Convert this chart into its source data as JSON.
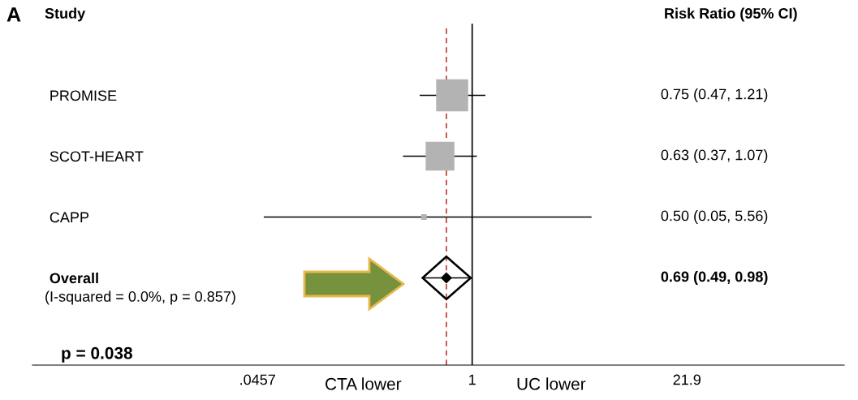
{
  "chart_data": {
    "type": "bubble",
    "orientation": "horizontal",
    "log": "x",
    "categories": [
      "PROMISE",
      "SCOT-HEART",
      "CAPP",
      "Overall"
    ],
    "series": [
      {
        "marker": "square",
        "color": "#b3b3b3",
        "values": [
          0.75,
          0.63,
          0.5,
          null
        ],
        "sizes": [
          1,
          0.8,
          0.02,
          null
        ],
        "errors": [
          [
            0.47,
            1.21
          ],
          [
            0.37,
            1.07
          ],
          [
            0.05,
            5.56
          ],
          null
        ]
      },
      {
        "type": "scatter",
        "marker": "diamond",
        "color": "#000000",
        "values": [
          null,
          null,
          null,
          0.69
        ],
        "errors": [
          null,
          null,
          null,
          [
            0.49,
            0.98
          ]
        ]
      }
    ],
    "value_labels": [
      "0.75 (0.47, 1.21)",
      "0.63 (0.37, 1.07)",
      "0.50 (0.05, 5.56)",
      "0.69 (0.49, 0.98)"
    ],
    "xlim": [
      0.0018,
      210
    ],
    "xticks": [
      {
        "value": 0.0457,
        "label": ".0457"
      },
      1,
      21.9
    ],
    "ref_lines": [
      {
        "axis": "x",
        "value": 1,
        "color": "#000000",
        "line_style": "solid"
      },
      {
        "axis": "x",
        "value": 0.69,
        "color": "#c0392b",
        "line_style": "dashed"
      }
    ],
    "annotations": [
      "A",
      "Study",
      "Risk Ratio (95% CI)",
      "(I-squared = 0.0%, p = 0.857)",
      "p = 0.038",
      "CTA lower",
      "UC lower"
    ],
    "grid": false,
    "legend": false
  }
}
